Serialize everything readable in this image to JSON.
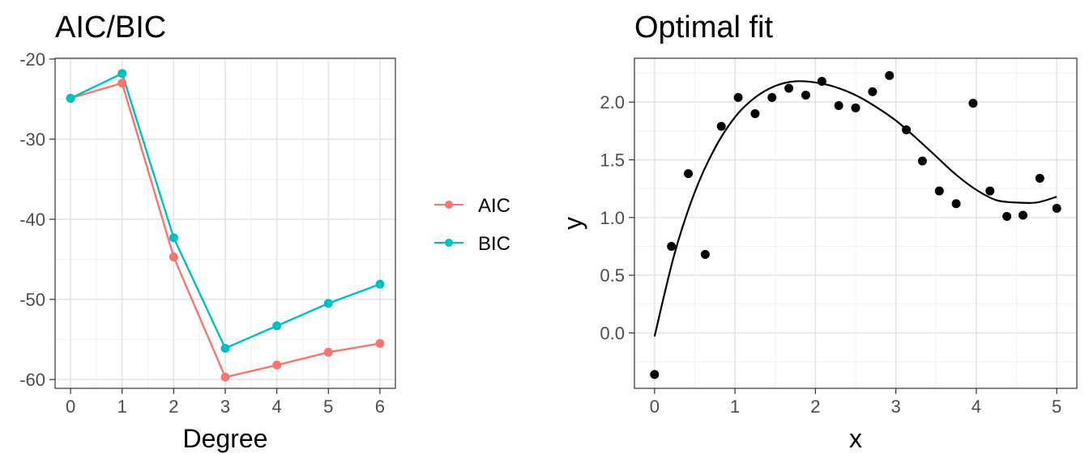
{
  "chart_data": [
    {
      "type": "line",
      "title": "AIC/BIC",
      "xlabel": "Degree",
      "ylabel": "",
      "x": [
        0,
        1,
        2,
        3,
        4,
        5,
        6
      ],
      "xlim": [
        -0.3,
        6.3
      ],
      "ylim": [
        -61.1,
        -19.9
      ],
      "xticks": [
        0,
        1,
        2,
        3,
        4,
        5,
        6
      ],
      "yticks": [
        -60,
        -50,
        -40,
        -30,
        -20
      ],
      "grid": true,
      "legend_position": "right",
      "series": [
        {
          "name": "AIC",
          "color": "#F8766D",
          "values": [
            -24.9,
            -23.0,
            -44.7,
            -59.7,
            -58.2,
            -56.6,
            -55.5
          ]
        },
        {
          "name": "BIC",
          "color": "#00BFC4",
          "values": [
            -24.9,
            -21.8,
            -42.3,
            -56.1,
            -53.3,
            -50.5,
            -48.1
          ]
        }
      ]
    },
    {
      "type": "scatter",
      "title": "Optimal fit",
      "xlabel": "x",
      "ylabel": "y",
      "xlim": [
        -0.25,
        5.25
      ],
      "ylim": [
        -0.48,
        2.38
      ],
      "xticks": [
        0,
        1,
        2,
        3,
        4,
        5
      ],
      "yticks": [
        0.0,
        0.5,
        1.0,
        1.5,
        2.0
      ],
      "ytick_labels": [
        "0.0",
        "0.5",
        "1.0",
        "1.5",
        "2.0"
      ],
      "grid": true,
      "points": {
        "color": "#000000",
        "x": [
          0.0,
          0.21,
          0.42,
          0.63,
          0.83,
          1.04,
          1.25,
          1.46,
          1.67,
          1.88,
          2.08,
          2.29,
          2.5,
          2.71,
          2.92,
          3.13,
          3.33,
          3.54,
          3.75,
          3.96,
          4.17,
          4.38,
          4.58,
          4.79,
          5.0
        ],
        "y": [
          -0.36,
          0.75,
          1.38,
          0.68,
          1.79,
          2.04,
          1.9,
          2.04,
          2.12,
          2.06,
          2.18,
          1.97,
          1.95,
          2.09,
          2.23,
          1.76,
          1.49,
          1.23,
          1.12,
          1.99,
          1.23,
          1.01,
          1.02,
          1.34,
          1.08
        ]
      },
      "fit_curve": {
        "color": "#000000",
        "x": [
          0.0,
          0.25,
          0.5,
          0.75,
          1.0,
          1.25,
          1.5,
          1.75,
          2.0,
          2.25,
          2.5,
          2.75,
          3.0,
          3.25,
          3.5,
          3.75,
          4.0,
          4.25,
          4.5,
          4.75,
          5.0
        ],
        "y": [
          -0.03,
          0.69,
          1.22,
          1.6,
          1.87,
          2.04,
          2.14,
          2.18,
          2.17,
          2.13,
          2.06,
          1.96,
          1.84,
          1.69,
          1.53,
          1.37,
          1.24,
          1.15,
          1.13,
          1.13,
          1.18
        ]
      }
    }
  ]
}
